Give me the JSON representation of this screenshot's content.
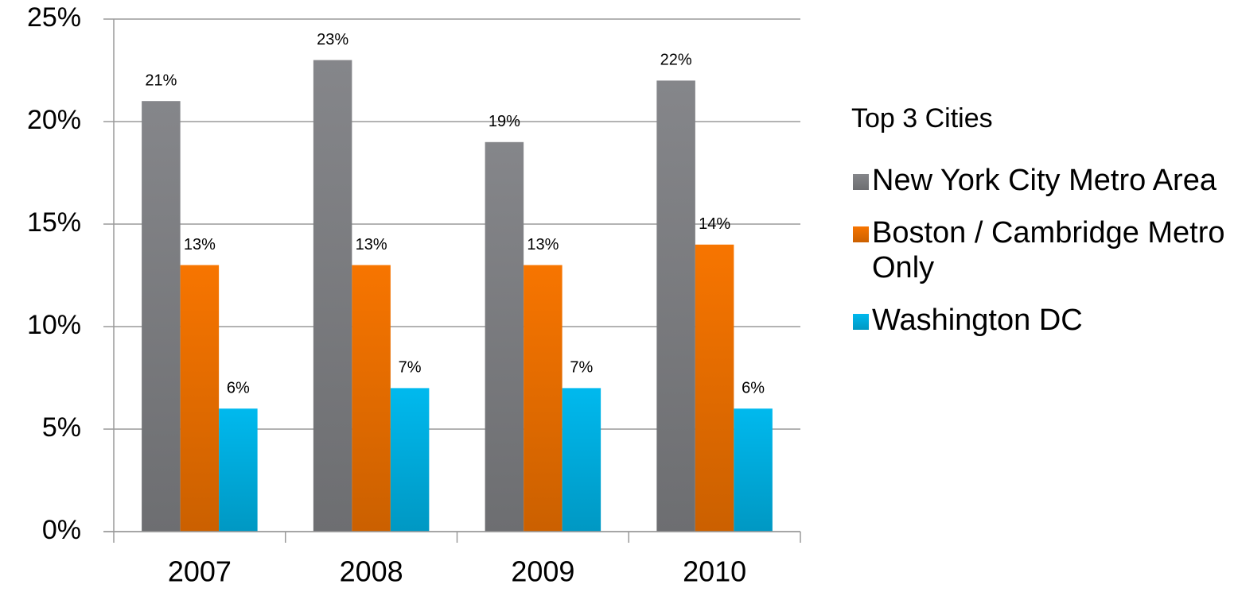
{
  "chart_data": {
    "type": "bar",
    "categories": [
      "2007",
      "2008",
      "2009",
      "2010"
    ],
    "series": [
      {
        "name": "New York City Metro Area",
        "color": "#85868a",
        "values": [
          21,
          23,
          19,
          22
        ],
        "value_labels": [
          "21%",
          "23%",
          "19%",
          "22%"
        ]
      },
      {
        "name": "Boston / Cambridge Metro Only",
        "color": "#f77500",
        "values": [
          13,
          13,
          13,
          14
        ],
        "value_labels": [
          "13%",
          "13%",
          "13%",
          "14%"
        ]
      },
      {
        "name": "Washington DC",
        "color": "#00b9ee",
        "values": [
          6,
          7,
          7,
          6
        ],
        "value_labels": [
          "6%",
          "7%",
          "7%",
          "6%"
        ]
      }
    ],
    "legend_title": "Top 3 Cities",
    "ylim": [
      0,
      25
    ],
    "yticks": [
      {
        "value": 0,
        "label": "0%"
      },
      {
        "value": 5,
        "label": "5%"
      },
      {
        "value": 10,
        "label": "10%"
      },
      {
        "value": 15,
        "label": "15%"
      },
      {
        "value": 20,
        "label": "20%"
      },
      {
        "value": 25,
        "label": "25%"
      }
    ],
    "grid": true,
    "legend": "right"
  }
}
